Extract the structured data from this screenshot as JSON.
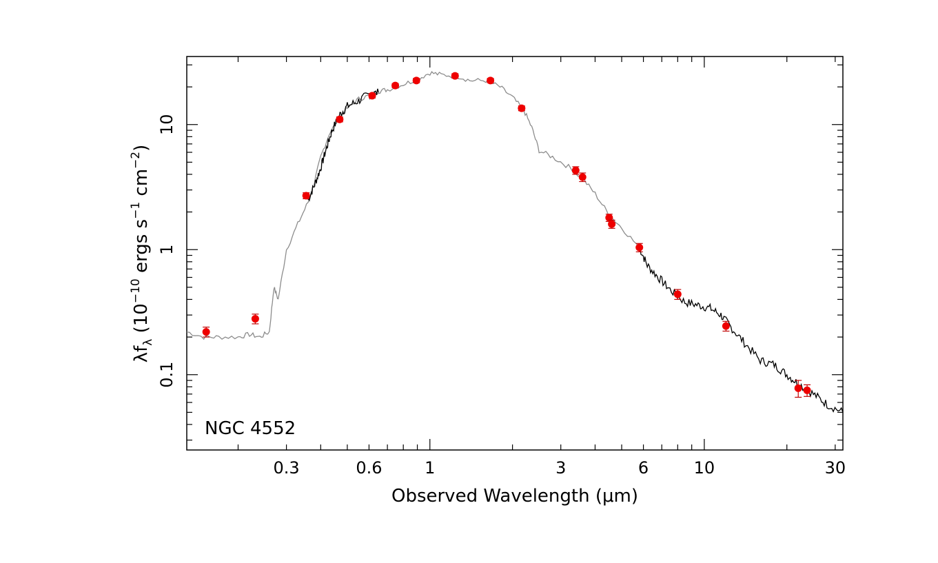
{
  "chart_data": {
    "type": "scatter",
    "title": "",
    "annotation": "NGC 4552",
    "xlabel": "Observed Wavelength (μm)",
    "ylabel": {
      "main": "λf",
      "sub": "λ",
      "text": " (10",
      "exp1": "−10",
      "units": " ergs s",
      "exp2": "−1",
      "units2": " cm",
      "exp3": "−2",
      "close": ")"
    },
    "x_scale": "log",
    "y_scale": "log",
    "xlim": [
      0.13,
      32
    ],
    "ylim": [
      0.025,
      35
    ],
    "x_ticklabels": [
      "0.3",
      "0.6",
      "1",
      "3",
      "6",
      "10",
      "30"
    ],
    "x_tickvalues": [
      0.3,
      0.6,
      1,
      3,
      6,
      10,
      30
    ],
    "y_ticklabels": [
      "0.1",
      "1",
      "10"
    ],
    "y_tickvalues": [
      0.1,
      1,
      10
    ],
    "grid": false,
    "colors": {
      "points": "#ee0000",
      "errorbars": "#c00000",
      "model": "#8c8c8c",
      "spectrum": "#000000"
    },
    "points": [
      {
        "x": 0.153,
        "y": 0.22,
        "err": 0.02
      },
      {
        "x": 0.231,
        "y": 0.28,
        "err": 0.025
      },
      {
        "x": 0.354,
        "y": 2.7,
        "err": 0.15
      },
      {
        "x": 0.469,
        "y": 11.0,
        "err": 0.5
      },
      {
        "x": 0.616,
        "y": 17.0,
        "err": 0.7
      },
      {
        "x": 0.748,
        "y": 20.5,
        "err": 0.8
      },
      {
        "x": 0.893,
        "y": 22.5,
        "err": 0.9
      },
      {
        "x": 1.235,
        "y": 24.5,
        "err": 1.0
      },
      {
        "x": 1.662,
        "y": 22.5,
        "err": 0.9
      },
      {
        "x": 2.159,
        "y": 13.5,
        "err": 0.6
      },
      {
        "x": 3.4,
        "y": 4.3,
        "err": 0.3
      },
      {
        "x": 3.6,
        "y": 3.8,
        "err": 0.3
      },
      {
        "x": 4.5,
        "y": 1.8,
        "err": 0.12
      },
      {
        "x": 4.6,
        "y": 1.6,
        "err": 0.12
      },
      {
        "x": 5.8,
        "y": 1.04,
        "err": 0.08
      },
      {
        "x": 8.0,
        "y": 0.44,
        "err": 0.04
      },
      {
        "x": 12.0,
        "y": 0.245,
        "err": 0.022
      },
      {
        "x": 22.0,
        "y": 0.078,
        "err": 0.012
      },
      {
        "x": 23.7,
        "y": 0.075,
        "err": 0.008
      }
    ],
    "model_curve": {
      "x": [
        0.13,
        0.15,
        0.17,
        0.2,
        0.22,
        0.24,
        0.26,
        0.27,
        0.28,
        0.3,
        0.33,
        0.36,
        0.38,
        0.4,
        0.43,
        0.47,
        0.5,
        0.55,
        0.6,
        0.65,
        0.7,
        0.8,
        0.9,
        1.0,
        1.1,
        1.25,
        1.4,
        1.6,
        1.8,
        2.0,
        2.2,
        2.35,
        2.5,
        2.8,
        3.2,
        3.6,
        4.0,
        4.5,
        5.0,
        5.8
      ],
      "y": [
        0.22,
        0.2,
        0.2,
        0.2,
        0.21,
        0.2,
        0.22,
        0.5,
        0.4,
        1.0,
        1.6,
        2.4,
        3.5,
        5.5,
        8.5,
        11.5,
        13.5,
        16.0,
        17.0,
        18.5,
        19.0,
        21.0,
        23.0,
        26.0,
        25.0,
        24.5,
        22.5,
        22.5,
        20.0,
        16.5,
        13.0,
        9.5,
        6.2,
        5.5,
        4.6,
        3.7,
        2.8,
        1.9,
        1.5,
        1.04
      ]
    },
    "observed_spectra": [
      {
        "x": [
          0.36,
          0.38,
          0.4,
          0.42,
          0.44,
          0.47,
          0.5,
          0.55,
          0.6,
          0.65
        ],
        "y": [
          2.5,
          3.3,
          4.5,
          6.5,
          9.0,
          12.0,
          14.0,
          15.5,
          17.5,
          18.0
        ]
      },
      {
        "x": [
          5.8,
          6.2,
          6.8,
          7.5,
          8.5,
          9.5,
          10.5,
          11.5,
          12.5,
          14.0,
          16.0,
          18.0,
          20.0,
          22.0,
          25.0,
          28.0,
          32.0
        ],
        "y": [
          1.04,
          0.75,
          0.6,
          0.48,
          0.38,
          0.36,
          0.34,
          0.3,
          0.24,
          0.18,
          0.13,
          0.12,
          0.1,
          0.085,
          0.07,
          0.058,
          0.05
        ]
      }
    ]
  }
}
